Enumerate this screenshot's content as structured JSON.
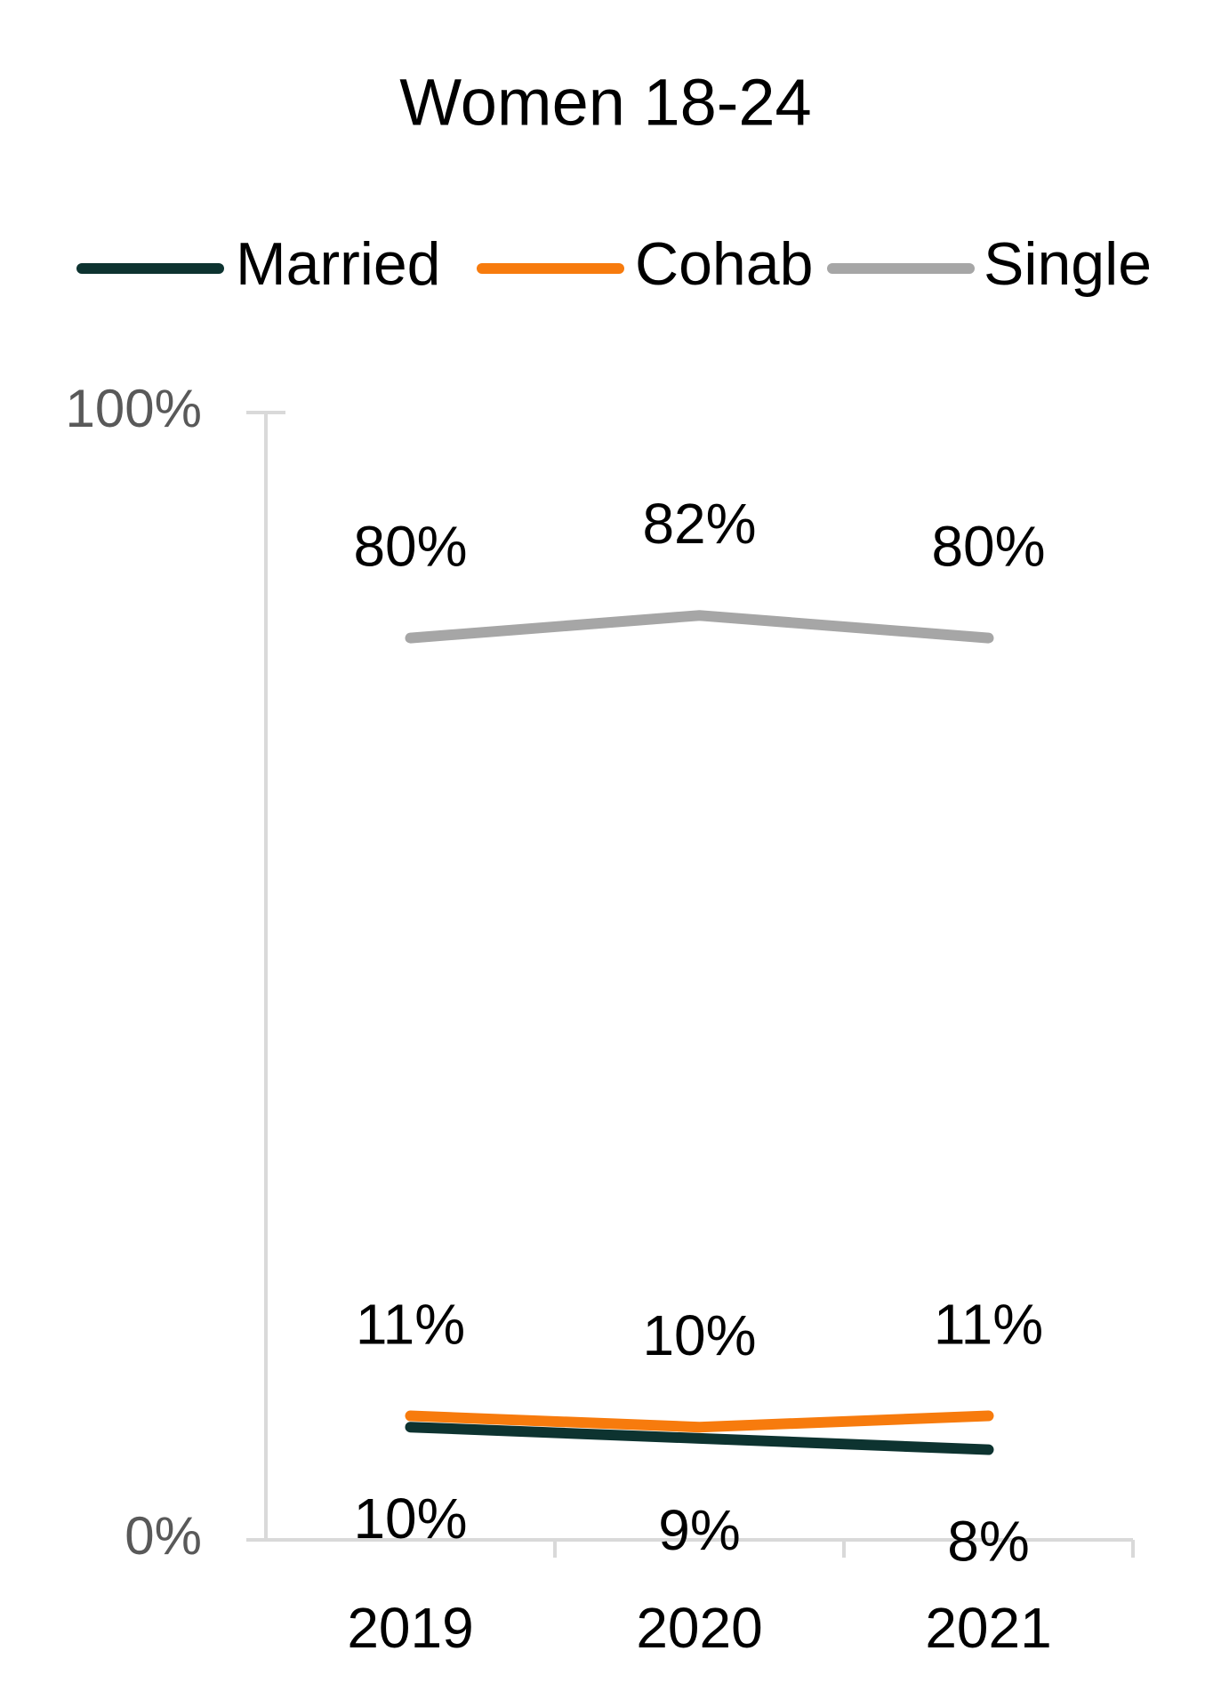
{
  "chart_data": {
    "type": "line",
    "title": "Women 18-24",
    "categories": [
      "2019",
      "2020",
      "2021"
    ],
    "series": [
      {
        "name": "Married",
        "color": "#0d3330",
        "values": [
          10,
          9,
          8
        ],
        "value_labels": [
          "10%",
          "9%",
          "8%"
        ]
      },
      {
        "name": "Cohab",
        "color": "#f77b0d",
        "values": [
          11,
          10,
          11
        ],
        "value_labels": [
          "11%",
          "10%",
          "11%"
        ]
      },
      {
        "name": "Single",
        "color": "#a6a6a6",
        "values": [
          80,
          82,
          80
        ],
        "value_labels": [
          "80%",
          "82%",
          "80%"
        ]
      }
    ],
    "ylim": [
      0,
      100
    ],
    "yticks": [
      {
        "value": 0,
        "label": "0%"
      },
      {
        "value": 100,
        "label": "100%"
      }
    ],
    "legend": "top"
  }
}
